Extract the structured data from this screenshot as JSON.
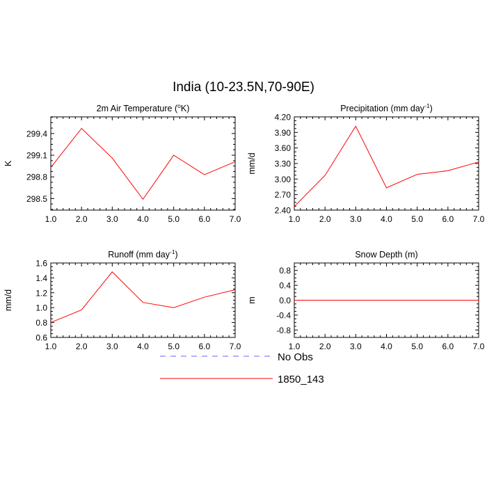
{
  "figure": {
    "title": "India (10-23.5N,70-90E)"
  },
  "legend": {
    "entries": [
      {
        "label": "No Obs",
        "color": "#6666ff",
        "dash": "dashed"
      },
      {
        "label": "1850_143",
        "color": "#ff0000",
        "dash": "solid"
      }
    ]
  },
  "chart_data": [
    {
      "type": "line",
      "title": "2m Air Temperature (",
      "title_sup": "o",
      "title_end": "K)",
      "ylabel": "K",
      "x": [
        1,
        2,
        3,
        4,
        5,
        6,
        7
      ],
      "xticks": [
        "1.0",
        "2.0",
        "3.0",
        "4.0",
        "5.0",
        "6.0",
        "7.0"
      ],
      "xlim": [
        1,
        7
      ],
      "ylim": [
        298.34,
        299.63
      ],
      "yticks": [
        298.5,
        298.8,
        299.1,
        299.4
      ],
      "yticklabels": [
        "298.5",
        "298.8",
        "299.1",
        "299.4"
      ],
      "series": [
        {
          "name": "1850_143",
          "color": "#ff0000",
          "values": [
            298.93,
            299.47,
            299.06,
            298.49,
            299.1,
            298.83,
            299.01
          ]
        }
      ]
    },
    {
      "type": "line",
      "title": "Precipitation (mm day",
      "title_sup": "-1",
      "title_end": ")",
      "ylabel": "mm/d",
      "x": [
        1,
        2,
        3,
        4,
        5,
        6,
        7
      ],
      "xticks": [
        "1.0",
        "2.0",
        "3.0",
        "4.0",
        "5.0",
        "6.0",
        "7.0"
      ],
      "xlim": [
        1,
        7
      ],
      "ylim": [
        2.4,
        4.2
      ],
      "yticks": [
        2.4,
        2.7,
        3.0,
        3.3,
        3.6,
        3.9,
        4.2
      ],
      "yticklabels": [
        "2.40",
        "2.70",
        "3.00",
        "3.30",
        "3.60",
        "3.90",
        "4.20"
      ],
      "series": [
        {
          "name": "1850_143",
          "color": "#ff0000",
          "values": [
            2.47,
            3.07,
            4.02,
            2.83,
            3.09,
            3.16,
            3.33
          ]
        }
      ]
    },
    {
      "type": "line",
      "title": "Runoff (mm day",
      "title_sup": "-1",
      "title_end": ")",
      "ylabel": "mm/d",
      "x": [
        1,
        2,
        3,
        4,
        5,
        6,
        7
      ],
      "xticks": [
        "1.0",
        "2.0",
        "3.0",
        "4.0",
        "5.0",
        "6.0",
        "7.0"
      ],
      "xlim": [
        1,
        7
      ],
      "ylim": [
        0.6,
        1.6
      ],
      "yticks": [
        0.6,
        0.8,
        1.0,
        1.2,
        1.4,
        1.6
      ],
      "yticklabels": [
        "0.6",
        "0.8",
        "1.0",
        "1.2",
        "1.4",
        "1.6"
      ],
      "series": [
        {
          "name": "1850_143",
          "color": "#ff0000",
          "values": [
            0.8,
            0.97,
            1.48,
            1.07,
            1.0,
            1.14,
            1.24
          ]
        }
      ]
    },
    {
      "type": "line",
      "title": "Snow Depth (m)",
      "title_sup": "",
      "title_end": "",
      "ylabel": "m",
      "x": [
        1,
        2,
        3,
        4,
        5,
        6,
        7
      ],
      "xticks": [
        "1.0",
        "2.0",
        "3.0",
        "4.0",
        "5.0",
        "6.0",
        "7.0"
      ],
      "xlim": [
        1,
        7
      ],
      "ylim": [
        -1.0,
        1.0
      ],
      "yticks": [
        -0.8,
        -0.4,
        0.0,
        0.4,
        0.8
      ],
      "yticklabels": [
        "-0.8",
        "-0.4",
        "0.0",
        "0.4",
        "0.8"
      ],
      "series": [
        {
          "name": "1850_143",
          "color": "#ff0000",
          "values": [
            0,
            0,
            0,
            0,
            0,
            0,
            0
          ]
        }
      ]
    }
  ]
}
